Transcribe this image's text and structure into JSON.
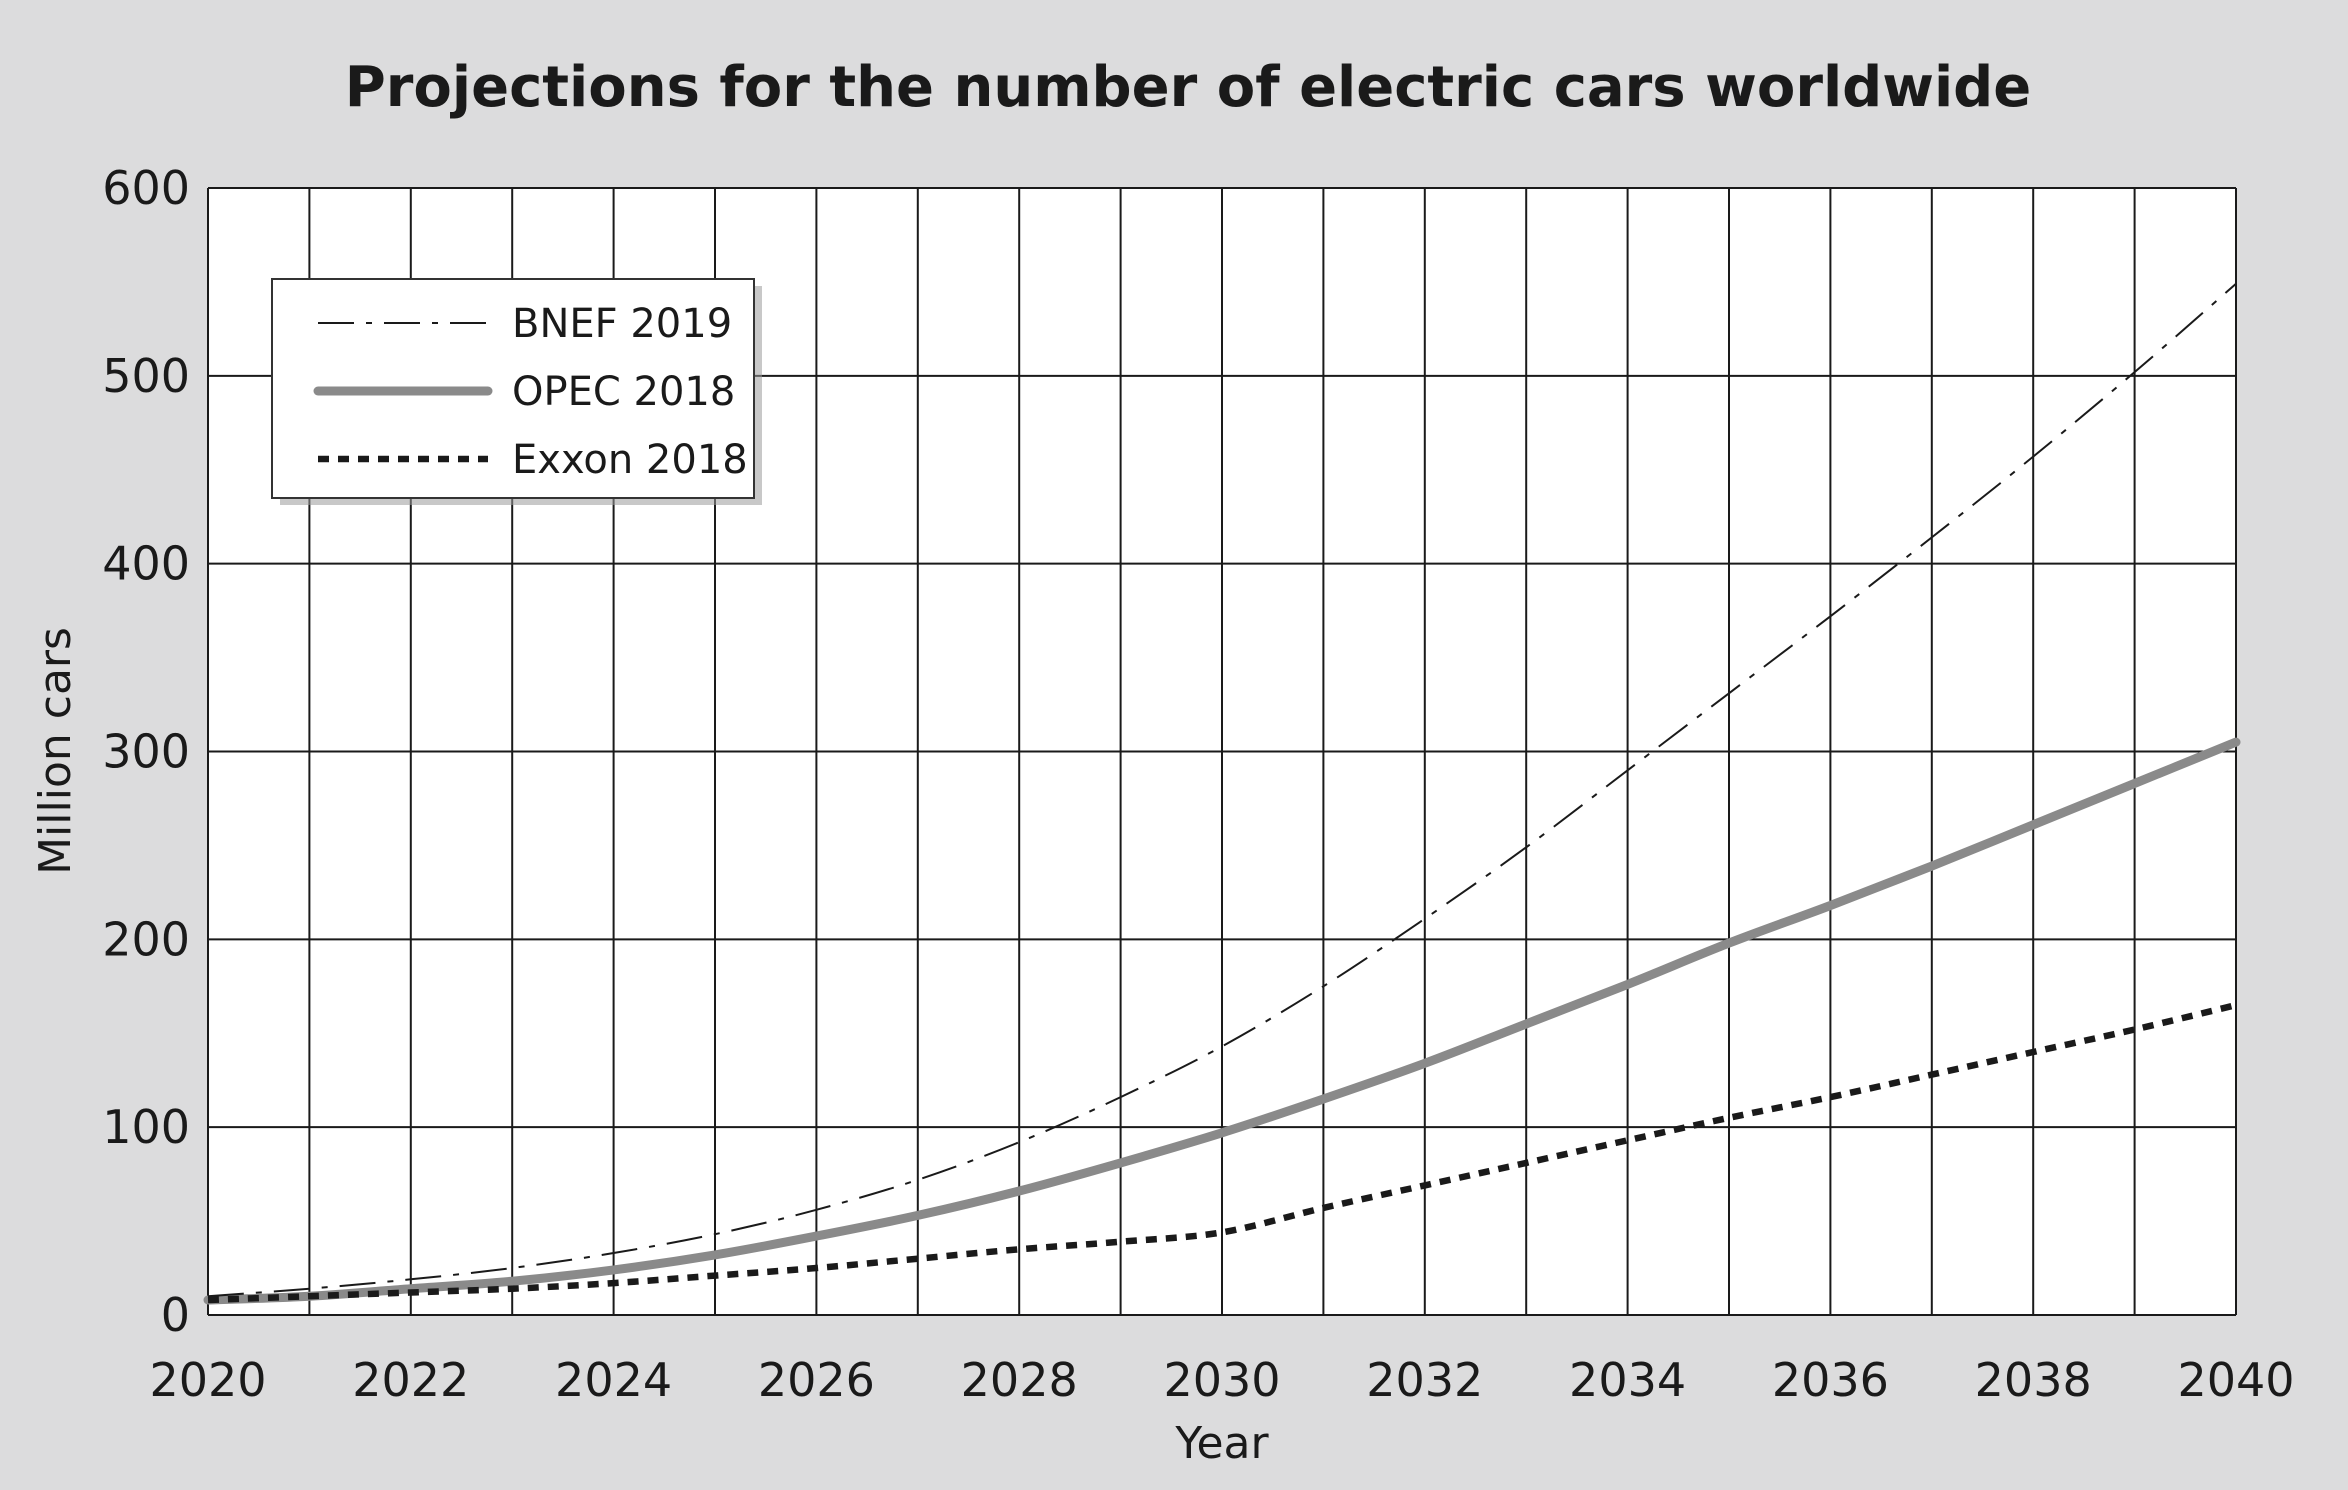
{
  "chart_data": {
    "type": "line",
    "title": "Projections for the number of electric cars worldwide",
    "xlabel": "Year",
    "ylabel": "Million cars",
    "xlim": [
      2020,
      2040
    ],
    "ylim": [
      0,
      600
    ],
    "x_ticks": [
      "2020",
      "2022",
      "2024",
      "2026",
      "2028",
      "2030",
      "2032",
      "2034",
      "2036",
      "2038",
      "2040"
    ],
    "y_ticks": [
      "0",
      "100",
      "200",
      "300",
      "400",
      "500",
      "600"
    ],
    "grid": true,
    "grid_x_step": 1,
    "grid_y_step": 100,
    "legend_position": "top-left",
    "x": [
      2020,
      2021,
      2022,
      2023,
      2024,
      2025,
      2026,
      2027,
      2028,
      2029,
      2030,
      2031,
      2032,
      2033,
      2034,
      2035,
      2036,
      2037,
      2038,
      2039,
      2040
    ],
    "series": [
      {
        "name": "BNEF 2019",
        "style": "dash-dot",
        "color": "#1a1a1a",
        "values": [
          10,
          14,
          19,
          25,
          33,
          43,
          56,
          72,
          92,
          116,
          143,
          175,
          211,
          249,
          290,
          331,
          372,
          414,
          457,
          502,
          549
        ]
      },
      {
        "name": "OPEC 2018",
        "style": "solid-thick",
        "color": "#8a8a8a",
        "values": [
          8,
          10,
          14,
          18,
          24,
          32,
          42,
          53,
          66,
          81,
          97,
          115,
          134,
          155,
          176,
          198,
          218,
          239,
          261,
          283,
          305
        ]
      },
      {
        "name": "Exxon 2018",
        "style": "dotted",
        "color": "#1a1a1a",
        "values": [
          8,
          10,
          12,
          14,
          17,
          21,
          25,
          30,
          35,
          39,
          44,
          57,
          69,
          81,
          93,
          105,
          116,
          128,
          140,
          152,
          165
        ]
      }
    ]
  }
}
